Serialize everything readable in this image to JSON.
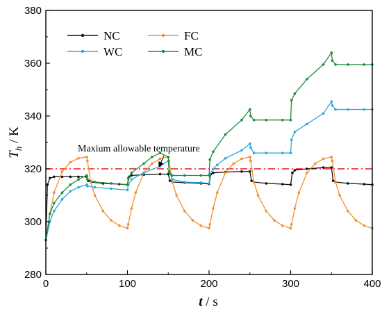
{
  "chart_data": {
    "type": "line",
    "xlabel_main": "t",
    "xlabel_unit": " / s",
    "ylabel_main": "T",
    "ylabel_sub": "h",
    "ylabel_unit": " / K",
    "xlim": [
      0,
      400
    ],
    "ylim": [
      280,
      380
    ],
    "xticks": [
      0,
      100,
      200,
      300,
      400
    ],
    "yticks": [
      280,
      300,
      320,
      340,
      360,
      380
    ],
    "grid": false,
    "legend_position": "top-left",
    "threshold": {
      "value": 320,
      "color": "#e8141c",
      "style": "dash-dot"
    },
    "annotation": {
      "text": "Maxium allowable temperature",
      "points_to": [
        137,
        320
      ]
    },
    "series": [
      {
        "name": "NC",
        "color": "#111111",
        "x": [
          0,
          2,
          5,
          10,
          20,
          30,
          40,
          50,
          52,
          55,
          70,
          90,
          100,
          102,
          105,
          120,
          140,
          150,
          152,
          155,
          170,
          190,
          200,
          202,
          205,
          220,
          240,
          250,
          252,
          255,
          270,
          290,
          300,
          302,
          305,
          320,
          340,
          350,
          352,
          355,
          370,
          390,
          400
        ],
        "y": [
          293,
          314,
          316.5,
          317,
          317,
          317,
          317,
          317,
          315.5,
          315,
          314.5,
          314.2,
          314,
          317,
          317.5,
          317.8,
          318,
          318,
          315.5,
          315,
          314.8,
          314.5,
          314.3,
          318,
          318.5,
          318.8,
          319,
          319,
          315.5,
          315,
          314.5,
          314.2,
          314,
          318.5,
          319.5,
          320,
          320.5,
          320.5,
          315.5,
          315,
          314.5,
          314.2,
          314
        ]
      },
      {
        "name": "FC",
        "color": "#f28e2b",
        "x": [
          0,
          5,
          10,
          20,
          30,
          40,
          50,
          51,
          55,
          60,
          70,
          80,
          90,
          100,
          101,
          105,
          110,
          120,
          130,
          140,
          150,
          151,
          155,
          160,
          170,
          180,
          190,
          200,
          201,
          205,
          210,
          220,
          230,
          240,
          250,
          251,
          255,
          260,
          270,
          280,
          290,
          300,
          301,
          305,
          310,
          320,
          330,
          340,
          350,
          351,
          355,
          360,
          370,
          380,
          390,
          400
        ],
        "y": [
          293,
          303,
          311,
          319,
          322.5,
          324,
          324.5,
          323,
          315,
          310,
          304,
          300.5,
          298.5,
          297.5,
          299,
          305,
          311,
          318.5,
          322,
          323.8,
          324.5,
          323,
          315,
          310,
          304,
          300.5,
          298.5,
          297.5,
          299,
          305,
          311,
          318.5,
          322,
          323.8,
          324.5,
          323,
          315,
          310,
          304,
          300.5,
          298.5,
          297.5,
          299,
          305,
          311,
          318.5,
          322,
          323.8,
          324.5,
          323,
          315,
          310,
          304,
          300.5,
          298.5,
          297.5
        ]
      },
      {
        "name": "WC",
        "color": "#2aa8e0",
        "x": [
          0,
          5,
          10,
          20,
          30,
          40,
          50,
          51,
          60,
          80,
          100,
          101,
          105,
          120,
          140,
          150,
          151,
          155,
          170,
          190,
          200,
          201,
          205,
          210,
          220,
          240,
          250,
          251,
          255,
          270,
          290,
          300,
          301,
          305,
          320,
          340,
          350,
          351,
          355,
          370,
          390,
          400
        ],
        "y": [
          293,
          300,
          304,
          308.5,
          311.5,
          313,
          314,
          313.5,
          313,
          312.5,
          312,
          314,
          316,
          318.5,
          321,
          323,
          319,
          316,
          315,
          314.8,
          314.5,
          318,
          320,
          321.5,
          324,
          327,
          329.5,
          328,
          326,
          326,
          326,
          326,
          331,
          334,
          337,
          341,
          345.5,
          344,
          342.5,
          342.5,
          342.5,
          342.5
        ]
      },
      {
        "name": "MC",
        "color": "#1f8a3a",
        "x": [
          0,
          5,
          10,
          20,
          30,
          40,
          50,
          51,
          60,
          80,
          100,
          101,
          105,
          120,
          130,
          140,
          150,
          151,
          155,
          170,
          190,
          200,
          201,
          205,
          220,
          240,
          250,
          251,
          255,
          270,
          290,
          300,
          301,
          305,
          320,
          340,
          350,
          351,
          355,
          370,
          390,
          400
        ],
        "y": [
          293,
          303,
          307,
          311,
          314,
          316,
          317.5,
          316,
          315,
          314.5,
          314,
          316.5,
          318.5,
          322,
          324.5,
          326,
          324.5,
          319,
          317.5,
          317.5,
          317.5,
          317.5,
          323.5,
          326.5,
          333,
          338.5,
          342.5,
          340,
          338.5,
          338.5,
          338.5,
          338.5,
          346,
          348.5,
          354,
          359.5,
          364,
          361,
          359.5,
          359.5,
          359.5,
          359.5
        ]
      }
    ]
  }
}
